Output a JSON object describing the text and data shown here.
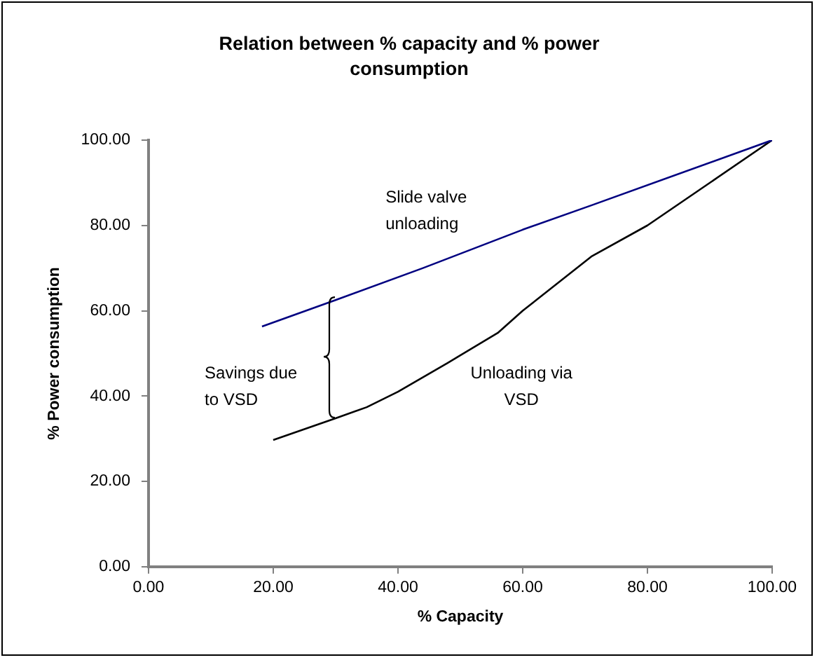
{
  "chart_data": {
    "type": "line",
    "title": "Relation between % capacity and % power consumption",
    "xlabel": "% Capacity",
    "ylabel": "% Power consumption",
    "series": [
      {
        "color": "#000080",
        "x": [
          18.2,
          30,
          44,
          60,
          71,
          100
        ],
        "values": [
          56.3,
          62.5,
          70,
          79,
          84.7,
          100
        ]
      },
      {
        "color": "#000000",
        "x": [
          20,
          30,
          35,
          40,
          48,
          56,
          60,
          71,
          80,
          100
        ],
        "values": [
          29.7,
          34.8,
          37.4,
          41,
          47.8,
          54.8,
          60,
          72.7,
          80,
          100
        ]
      }
    ],
    "xlim": [
      0,
      100
    ],
    "xticks": [
      {
        "value": 0,
        "label": "0.00"
      },
      {
        "value": 20,
        "label": "20.00"
      },
      {
        "value": 40,
        "label": "40.00"
      },
      {
        "value": 60,
        "label": "60.00"
      },
      {
        "value": 80,
        "label": "80.00"
      },
      {
        "value": 100,
        "label": "100.00"
      }
    ],
    "ylim": [
      0,
      100
    ],
    "yticks": [
      {
        "value": 0,
        "label": "0.00"
      },
      {
        "value": 20,
        "label": "20.00"
      },
      {
        "value": 40,
        "label": "40.00"
      },
      {
        "value": 60,
        "label": "60.00"
      },
      {
        "value": 80,
        "label": "80.00"
      },
      {
        "value": 100,
        "label": "100.00"
      }
    ],
    "annotations": [
      "Slide valve\nunloading",
      "Savings due\nto VSD",
      "Unloading via\nVSD"
    ],
    "grid": false,
    "legend": false,
    "marker": "none",
    "line_style": "solid"
  }
}
